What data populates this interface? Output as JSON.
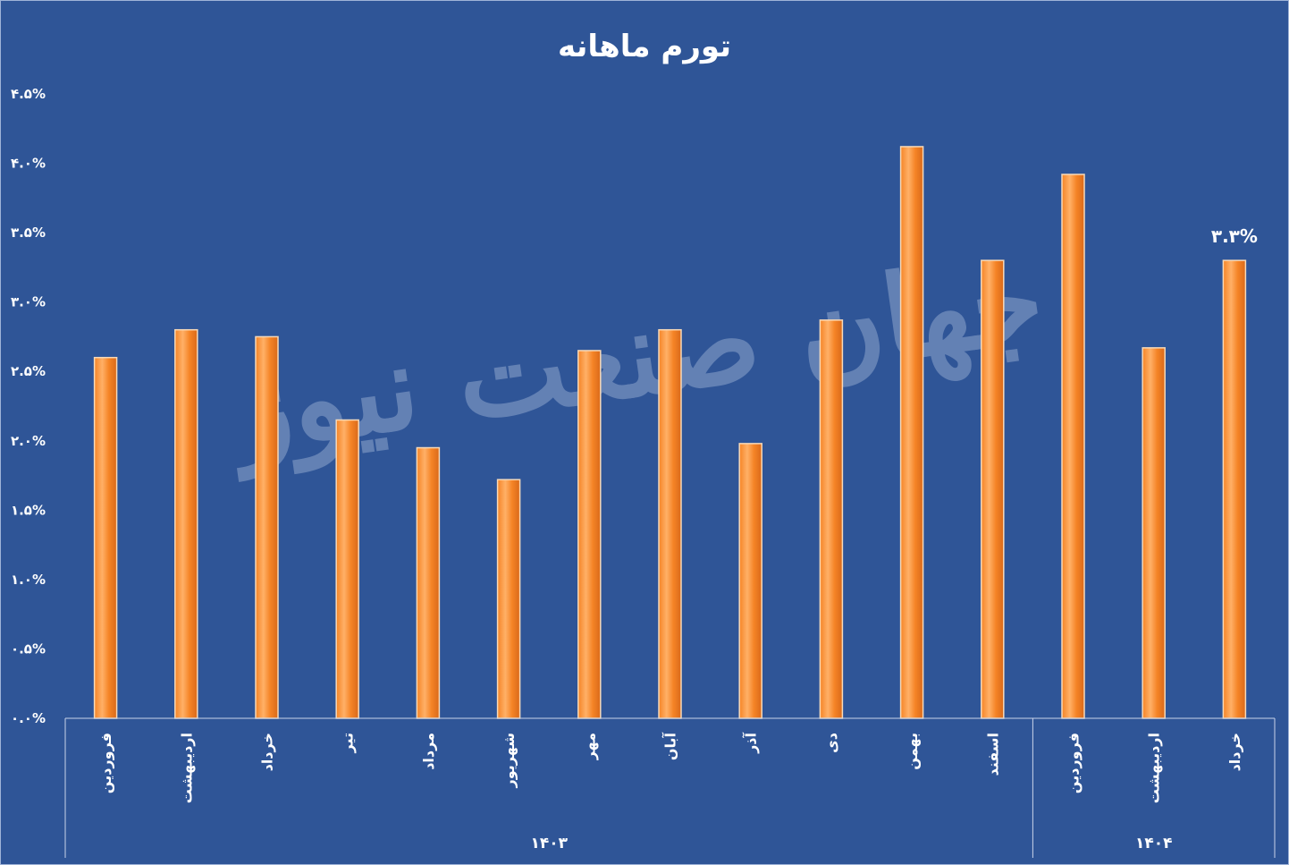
{
  "chart_data": {
    "type": "bar",
    "title": "تورم ماهانه",
    "categories": [
      "فروردین",
      "اردیبهشت",
      "خرداد",
      "تیر",
      "مرداد",
      "شهریور",
      "مهر",
      "آبان",
      "آذر",
      "دی",
      "بهمن",
      "اسفند",
      "فروردین",
      "اردیبهشت",
      "خرداد"
    ],
    "values": [
      2.6,
      2.8,
      2.75,
      2.15,
      1.95,
      1.72,
      2.65,
      2.8,
      1.98,
      2.87,
      4.12,
      3.3,
      3.92,
      2.67,
      3.3
    ],
    "groups": [
      {
        "label": "۱۴۰۳",
        "count": 12
      },
      {
        "label": "۱۴۰۴",
        "count": 3
      }
    ],
    "data_labels": [
      {
        "index": 14,
        "text": "۳.۳%"
      }
    ],
    "ylim": [
      0,
      4.5
    ],
    "yticks": [
      "۰.۰%",
      "۰.۵%",
      "۱.۰%",
      "۱.۵%",
      "۲.۰%",
      "۲.۵%",
      "۳.۰%",
      "۳.۵%",
      "۴.۰%",
      "۴.۵%"
    ],
    "xlabel": "",
    "ylabel": "",
    "grid": false,
    "legend": "none",
    "colors": {
      "background": "#2F5597",
      "bar": "#F58426",
      "bar_light": "#FFB067",
      "bar_edge": "#F7D9B8",
      "text": "#FFFFFF",
      "axis": "#C9D4E8"
    }
  },
  "watermark": "جهان صنعت نیوز"
}
